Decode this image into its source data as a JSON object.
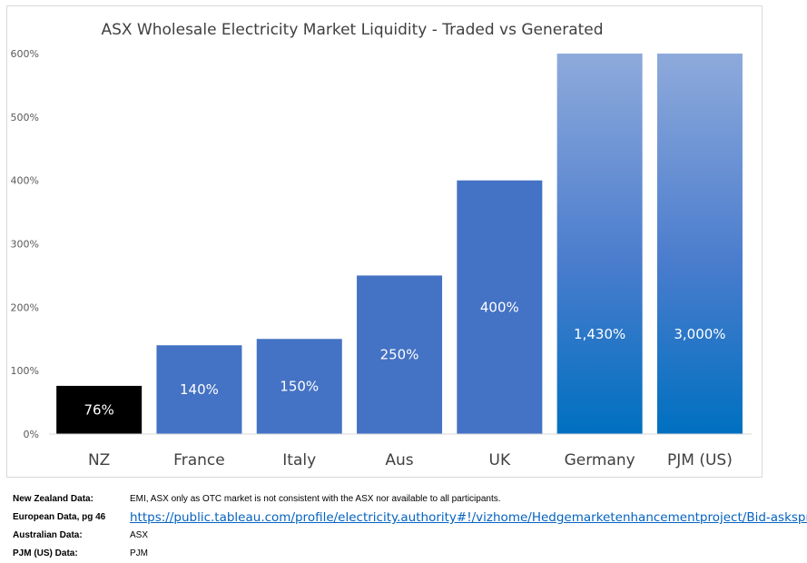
{
  "chart_data": {
    "type": "bar",
    "title": "ASX Wholesale Electricity Market Liquidity - Traded vs Generated",
    "categories": [
      "NZ",
      "France",
      "Italy",
      "Aus",
      "UK",
      "Germany",
      "PJM (US)"
    ],
    "values": [
      76,
      140,
      150,
      250,
      400,
      1430,
      3000
    ],
    "value_labels": [
      "76%",
      "140%",
      "150%",
      "250%",
      "400%",
      "1,430%",
      "3,000%"
    ],
    "y_ticks": [
      "0%",
      "100%",
      "200%",
      "300%",
      "400%",
      "500%",
      "600%"
    ],
    "ylim": [
      0,
      600
    ],
    "xlabel": "",
    "ylabel": "",
    "grid": false,
    "legend": "none",
    "colors": {
      "NZ": "#000000",
      "default": "#4472c4",
      "gradient_top": "#8eaadb",
      "gradient_bottom": "#0070c0"
    }
  },
  "sources": [
    {
      "label": "New Zealand Data:",
      "value": "EMI, ASX only as OTC market is not consistent with the ASX nor available to all participants.",
      "is_link": false
    },
    {
      "label": "European Data, pg 46",
      "value": "https://public.tableau.com/profile/electricity.authority#!/vizhome/Hedgemarketenhancementproject/Bid-askspread",
      "is_link": true
    },
    {
      "label": "Australian Data:",
      "value": "ASX",
      "is_link": false
    },
    {
      "label": "PJM (US) Data:",
      "value": "PJM",
      "is_link": false
    }
  ]
}
